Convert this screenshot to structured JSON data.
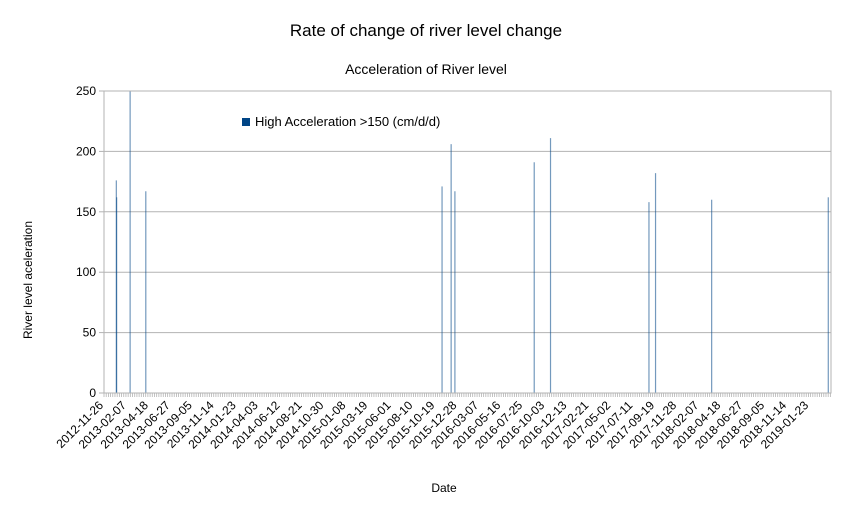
{
  "title": "Rate of change of river level change",
  "chart_data": {
    "type": "bar",
    "title": "Acceleration of River level",
    "xlabel": "Date",
    "ylabel": "River level aceleration",
    "ylim": [
      0,
      250
    ],
    "yticks": [
      0,
      50,
      100,
      150,
      200,
      250
    ],
    "grid": true,
    "legend_position": "top-left",
    "x_start": "2012-11-26",
    "x_end": "2019-04-03",
    "xtick_labels": [
      "2012-11-26",
      "2013-02-07",
      "2013-04-18",
      "2013-06-27",
      "2013-09-05",
      "2013-11-14",
      "2014-01-23",
      "2014-04-03",
      "2014-06-12",
      "2014-08-21",
      "2014-10-30",
      "2015-01-08",
      "2015-03-19",
      "2015-06-01",
      "2015-08-10",
      "2015-10-19",
      "2015-12-28",
      "2016-03-07",
      "2016-05-16",
      "2016-07-25",
      "2016-10-03",
      "2016-12-13",
      "2017-02-21",
      "2017-05-02",
      "2017-07-11",
      "2017-09-19",
      "2017-11-28",
      "2018-02-07",
      "2018-04-18",
      "2018-06-27",
      "2018-09-05",
      "2018-11-14",
      "2019-01-23"
    ],
    "series": [
      {
        "name": "High Acceleration >150 (cm/d/d)",
        "color": "#004586",
        "points": [
          {
            "x": "2013-01-04",
            "y": 176
          },
          {
            "x": "2013-01-05",
            "y": 162
          },
          {
            "x": "2013-02-17",
            "y": 250
          },
          {
            "x": "2013-04-08",
            "y": 167
          },
          {
            "x": "2015-11-09",
            "y": 171
          },
          {
            "x": "2015-12-08",
            "y": 206
          },
          {
            "x": "2015-12-20",
            "y": 167
          },
          {
            "x": "2016-08-29",
            "y": 191
          },
          {
            "x": "2016-10-20",
            "y": 211
          },
          {
            "x": "2017-08-30",
            "y": 158
          },
          {
            "x": "2017-09-20",
            "y": 182
          },
          {
            "x": "2018-03-18",
            "y": 160
          },
          {
            "x": "2019-03-25",
            "y": 162
          }
        ]
      }
    ]
  }
}
